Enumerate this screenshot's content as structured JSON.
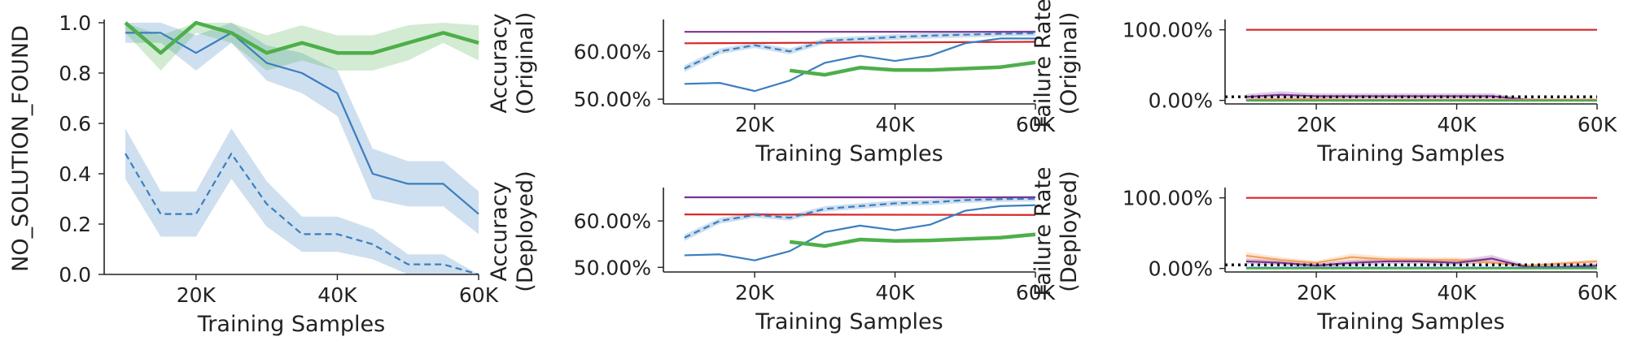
{
  "chart_data": [
    {
      "type": "line",
      "id": "p1",
      "ylabel": "NO_SOLUTION_FOUND",
      "xlabel": "Training Samples",
      "xlim": [
        7000,
        60000
      ],
      "ylim": [
        0,
        1.0
      ],
      "xticks": [
        20000,
        40000,
        60000
      ],
      "xticklabels": [
        "20K",
        "40K",
        "60K"
      ],
      "yticks": [
        0,
        0.2,
        0.4,
        0.6,
        0.8,
        1.0
      ],
      "yticklabels": [
        "0.0",
        "0.2",
        "0.4",
        "0.6",
        "0.8",
        "1.0"
      ],
      "series": [
        {
          "color": "#3a7ebf",
          "dash": false,
          "width": 2.2,
          "x": [
            10000,
            15000,
            20000,
            25000,
            30000,
            35000,
            40000,
            45000,
            50000,
            55000,
            60000
          ],
          "y": [
            0.96,
            0.96,
            0.88,
            0.96,
            0.84,
            0.8,
            0.72,
            0.4,
            0.36,
            0.36,
            0.24
          ],
          "lo": [
            0.92,
            0.92,
            0.81,
            0.92,
            0.77,
            0.72,
            0.63,
            0.3,
            0.27,
            0.27,
            0.16
          ],
          "hi": [
            1.0,
            1.0,
            0.95,
            1.0,
            0.91,
            0.88,
            0.81,
            0.5,
            0.45,
            0.45,
            0.33
          ]
        },
        {
          "color": "#3a7ebf",
          "dash": true,
          "width": 2.2,
          "x": [
            10000,
            15000,
            20000,
            25000,
            30000,
            35000,
            40000,
            45000,
            50000,
            55000,
            60000
          ],
          "y": [
            0.48,
            0.24,
            0.24,
            0.48,
            0.28,
            0.16,
            0.16,
            0.12,
            0.04,
            0.04,
            0.0
          ],
          "lo": [
            0.38,
            0.15,
            0.15,
            0.38,
            0.19,
            0.09,
            0.09,
            0.06,
            0.0,
            0.0,
            0.0
          ],
          "hi": [
            0.58,
            0.33,
            0.33,
            0.58,
            0.37,
            0.23,
            0.23,
            0.18,
            0.08,
            0.08,
            0.0
          ]
        },
        {
          "color": "#4daf4a",
          "dash": false,
          "width": 4.5,
          "x": [
            10000,
            15000,
            20000,
            25000,
            30000,
            35000,
            40000,
            45000,
            50000,
            55000,
            60000
          ],
          "y": [
            1.0,
            0.88,
            1.0,
            0.96,
            0.88,
            0.92,
            0.88,
            0.88,
            0.92,
            0.96,
            0.92
          ],
          "lo": [
            0.96,
            0.81,
            0.96,
            0.92,
            0.81,
            0.85,
            0.81,
            0.81,
            0.85,
            0.92,
            0.85
          ],
          "hi": [
            1.0,
            0.95,
            1.0,
            1.0,
            0.95,
            0.99,
            0.95,
            0.95,
            0.99,
            1.0,
            0.99
          ]
        }
      ]
    },
    {
      "type": "line",
      "id": "p2",
      "ylabel": [
        "Accuracy",
        "(Original)"
      ],
      "xlabel": "Training Samples",
      "xlim": [
        7000,
        60000
      ],
      "ylim": [
        0.49,
        0.66
      ],
      "xticks": [
        20000,
        40000,
        60000
      ],
      "xticklabels": [
        "20K",
        "40K",
        "60K"
      ],
      "yticks": [
        0.5,
        0.6
      ],
      "yticklabels": [
        "50.00%",
        "60.00%"
      ],
      "series": [
        {
          "color": "#7b3294",
          "dash": false,
          "width": 2.2,
          "x": [
            10000,
            60000
          ],
          "y": [
            0.641,
            0.641
          ]
        },
        {
          "color": "#d62728",
          "dash": false,
          "width": 2.2,
          "x": [
            10000,
            60000
          ],
          "y": [
            0.617,
            0.62
          ]
        },
        {
          "color": "#3a7ebf",
          "dash": true,
          "width": 2.2,
          "x": [
            10000,
            15000,
            20000,
            25000,
            30000,
            35000,
            40000,
            45000,
            50000,
            55000,
            60000
          ],
          "y": [
            0.564,
            0.6,
            0.613,
            0.6,
            0.622,
            0.626,
            0.63,
            0.633,
            0.635,
            0.637,
            0.638
          ],
          "lo": [
            0.557,
            0.594,
            0.607,
            0.594,
            0.616,
            0.62,
            0.624,
            0.627,
            0.629,
            0.631,
            0.632
          ],
          "hi": [
            0.571,
            0.606,
            0.619,
            0.606,
            0.628,
            0.632,
            0.636,
            0.639,
            0.641,
            0.643,
            0.644
          ]
        },
        {
          "color": "#3a7ebf",
          "dash": false,
          "width": 2.2,
          "x": [
            10000,
            15000,
            20000,
            25000,
            30000,
            35000,
            40000,
            45000,
            50000,
            55000,
            60000
          ],
          "y": [
            0.532,
            0.534,
            0.517,
            0.539,
            0.576,
            0.591,
            0.58,
            0.591,
            0.617,
            0.627,
            0.627
          ]
        },
        {
          "color": "#4daf4a",
          "dash": false,
          "width": 4.5,
          "x": [
            25000,
            30000,
            35000,
            40000,
            45000,
            50000,
            55000,
            60000
          ],
          "y": [
            0.56,
            0.551,
            0.566,
            0.561,
            0.561,
            0.564,
            0.567,
            0.577
          ]
        }
      ]
    },
    {
      "type": "line",
      "id": "p3",
      "ylabel": [
        "Failure Rate",
        "(Original)"
      ],
      "xlabel": "Training Samples",
      "xlim": [
        7000,
        60000
      ],
      "ylim": [
        -0.05,
        1.1
      ],
      "xticks": [
        20000,
        40000,
        60000
      ],
      "xticklabels": [
        "20K",
        "40K",
        "60K"
      ],
      "yticks": [
        0,
        1.0
      ],
      "yticklabels": [
        "0.00%",
        "100.00%"
      ],
      "series": [
        {
          "color": "#d62728",
          "dash": false,
          "width": 2.2,
          "x": [
            10000,
            60000
          ],
          "y": [
            1.0,
            1.0
          ]
        },
        {
          "color": "#7b3294",
          "dash": false,
          "width": 2.2,
          "x": [
            10000,
            15000,
            20000,
            25000,
            30000,
            35000,
            40000,
            45000,
            50000,
            55000,
            60000
          ],
          "y": [
            0.05,
            0.08,
            0.06,
            0.06,
            0.06,
            0.06,
            0.06,
            0.06,
            0.01,
            0.0,
            0.0
          ],
          "lo": [
            0.02,
            0.04,
            0.03,
            0.03,
            0.03,
            0.03,
            0.03,
            0.03,
            0.0,
            0.0,
            0.0
          ],
          "hi": [
            0.09,
            0.13,
            0.1,
            0.1,
            0.1,
            0.1,
            0.1,
            0.1,
            0.03,
            0.01,
            0.01
          ]
        },
        {
          "color": "#f5a05a",
          "dash": false,
          "width": 2.2,
          "x": [
            10000,
            15000,
            20000,
            25000,
            30000,
            35000,
            40000,
            45000,
            50000,
            55000,
            60000
          ],
          "y": [
            0.01,
            0.02,
            0.02,
            0.01,
            0.01,
            0.01,
            0.01,
            0.01,
            0.01,
            0.01,
            0.01
          ],
          "lo": [
            0.0,
            0.0,
            0.0,
            0.0,
            0.0,
            0.0,
            0.0,
            0.0,
            0.0,
            0.0,
            0.0
          ],
          "hi": [
            0.03,
            0.04,
            0.04,
            0.03,
            0.03,
            0.03,
            0.03,
            0.03,
            0.03,
            0.03,
            0.03
          ]
        },
        {
          "color": "#3a7ebf",
          "dash": false,
          "width": 2.2,
          "x": [
            10000,
            60000
          ],
          "y": [
            0.0,
            0.0
          ]
        },
        {
          "color": "#4daf4a",
          "dash": false,
          "width": 2.2,
          "x": [
            10000,
            60000
          ],
          "y": [
            -0.005,
            -0.005
          ]
        },
        {
          "color": "#111111",
          "dash": "dot",
          "width": 3.5,
          "x": [
            7000,
            60000
          ],
          "y": [
            0.05,
            0.05
          ]
        }
      ]
    },
    {
      "type": "line",
      "id": "p4",
      "ylabel": [
        "Accuracy",
        "(Deployed)"
      ],
      "xlabel": "Training Samples",
      "xlim": [
        7000,
        60000
      ],
      "ylim": [
        0.49,
        0.665
      ],
      "xticks": [
        20000,
        40000,
        60000
      ],
      "xticklabels": [
        "20K",
        "40K",
        "60K"
      ],
      "yticks": [
        0.5,
        0.6
      ],
      "yticklabels": [
        "50.00%",
        "60.00%"
      ],
      "series": [
        {
          "color": "#7b3294",
          "dash": false,
          "width": 2.2,
          "x": [
            10000,
            60000
          ],
          "y": [
            0.651,
            0.651
          ]
        },
        {
          "color": "#d62728",
          "dash": false,
          "width": 2.2,
          "x": [
            10000,
            60000
          ],
          "y": [
            0.614,
            0.613
          ]
        },
        {
          "color": "#3a7ebf",
          "dash": true,
          "width": 2.2,
          "x": [
            10000,
            15000,
            20000,
            25000,
            30000,
            35000,
            40000,
            45000,
            50000,
            55000,
            60000
          ],
          "y": [
            0.564,
            0.6,
            0.613,
            0.607,
            0.626,
            0.632,
            0.638,
            0.64,
            0.645,
            0.647,
            0.648
          ],
          "lo": [
            0.557,
            0.594,
            0.607,
            0.601,
            0.62,
            0.626,
            0.632,
            0.634,
            0.639,
            0.641,
            0.642
          ],
          "hi": [
            0.571,
            0.606,
            0.619,
            0.613,
            0.632,
            0.638,
            0.644,
            0.646,
            0.651,
            0.653,
            0.654
          ]
        },
        {
          "color": "#3a7ebf",
          "dash": false,
          "width": 2.2,
          "x": [
            10000,
            15000,
            20000,
            25000,
            30000,
            35000,
            40000,
            45000,
            50000,
            55000,
            60000
          ],
          "y": [
            0.526,
            0.528,
            0.515,
            0.535,
            0.576,
            0.59,
            0.58,
            0.592,
            0.622,
            0.632,
            0.634
          ]
        },
        {
          "color": "#4daf4a",
          "dash": false,
          "width": 4.5,
          "x": [
            25000,
            30000,
            35000,
            40000,
            45000,
            50000,
            55000,
            60000
          ],
          "y": [
            0.555,
            0.546,
            0.56,
            0.557,
            0.558,
            0.561,
            0.564,
            0.571
          ]
        }
      ]
    },
    {
      "type": "line",
      "id": "p5",
      "ylabel": [
        "Failure Rate",
        "(Deployed)"
      ],
      "xlabel": "Training Samples",
      "xlim": [
        7000,
        60000
      ],
      "ylim": [
        -0.05,
        1.1
      ],
      "xticks": [
        20000,
        40000,
        60000
      ],
      "xticklabels": [
        "20K",
        "40K",
        "60K"
      ],
      "yticks": [
        0,
        1.0
      ],
      "yticklabels": [
        "0.00%",
        "100.00%"
      ],
      "series": [
        {
          "color": "#d62728",
          "dash": false,
          "width": 2.2,
          "x": [
            10000,
            60000
          ],
          "y": [
            1.0,
            1.0
          ]
        },
        {
          "color": "#f5a05a",
          "dash": false,
          "width": 2.2,
          "x": [
            10000,
            15000,
            20000,
            25000,
            30000,
            35000,
            40000,
            45000,
            50000,
            55000,
            60000
          ],
          "y": [
            0.18,
            0.12,
            0.08,
            0.16,
            0.13,
            0.12,
            0.12,
            0.08,
            0.04,
            0.07,
            0.1
          ],
          "lo": [
            0.13,
            0.08,
            0.05,
            0.11,
            0.09,
            0.08,
            0.08,
            0.05,
            0.02,
            0.04,
            0.07
          ],
          "hi": [
            0.23,
            0.16,
            0.11,
            0.21,
            0.17,
            0.16,
            0.16,
            0.11,
            0.06,
            0.1,
            0.13
          ]
        },
        {
          "color": "#7b3294",
          "dash": false,
          "width": 2.2,
          "x": [
            10000,
            15000,
            20000,
            25000,
            30000,
            35000,
            40000,
            45000,
            50000,
            55000,
            60000
          ],
          "y": [
            0.1,
            0.08,
            0.04,
            0.08,
            0.1,
            0.1,
            0.08,
            0.14,
            0.02,
            0.02,
            0.04
          ],
          "lo": [
            0.06,
            0.04,
            0.01,
            0.04,
            0.06,
            0.06,
            0.04,
            0.09,
            0.0,
            0.0,
            0.01
          ],
          "hi": [
            0.14,
            0.12,
            0.07,
            0.12,
            0.14,
            0.14,
            0.12,
            0.19,
            0.05,
            0.05,
            0.07
          ]
        },
        {
          "color": "#3a7ebf",
          "dash": false,
          "width": 2.2,
          "x": [
            10000,
            60000
          ],
          "y": [
            0.01,
            0.01
          ]
        },
        {
          "color": "#4daf4a",
          "dash": false,
          "width": 2.2,
          "x": [
            10000,
            60000
          ],
          "y": [
            0.0,
            0.0
          ]
        },
        {
          "color": "#111111",
          "dash": "dot",
          "width": 3.5,
          "x": [
            7000,
            60000
          ],
          "y": [
            0.05,
            0.05
          ]
        }
      ]
    }
  ]
}
